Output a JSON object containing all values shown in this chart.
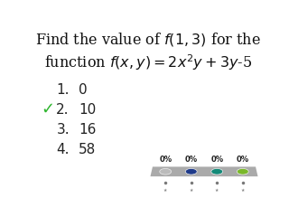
{
  "title_line1": "Find the value of $f(1,3)$ for the",
  "title_line2": "function $f(x,y)=2x^2y+3y$-5",
  "options": [
    "0",
    "10",
    "16",
    "58"
  ],
  "correct_index": 1,
  "checkmark_color": "#2db52d",
  "bg_color": "#ffffff",
  "option_label_color": "#222222",
  "bar_bg_color": "#999999",
  "bar_colors": [
    "#bbbbbb",
    "#1e3a8a",
    "#148a78",
    "#7ab82a"
  ],
  "pct_labels": [
    "0%",
    "0%",
    "0%",
    "0%"
  ],
  "title_fontsize": 11.5,
  "option_fontsize": 11
}
